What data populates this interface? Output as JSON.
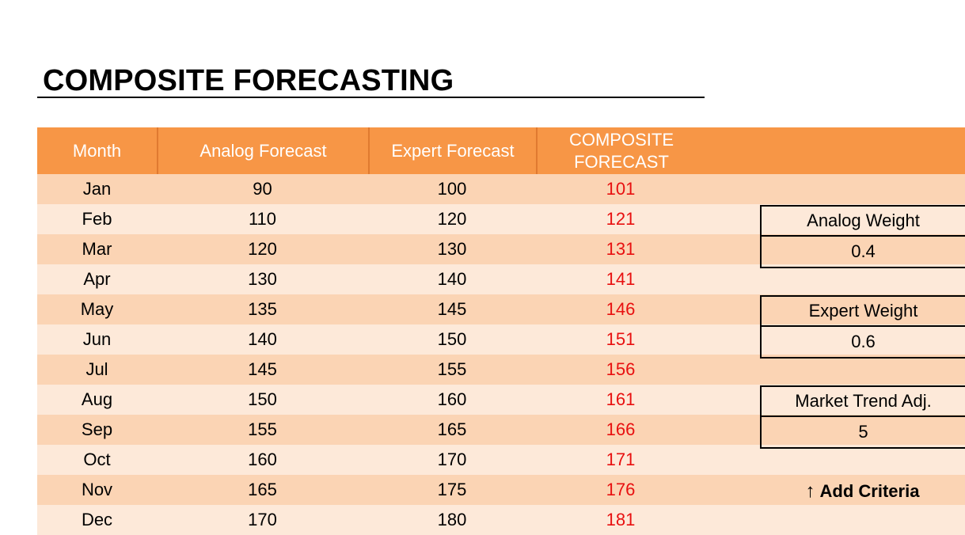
{
  "title": "COMPOSITE FORECASTING",
  "columns": {
    "month": "Month",
    "analog": "Analog Forecast",
    "expert": "Expert Forecast",
    "composite_line1": "COMPOSITE",
    "composite_line2": "FORECAST"
  },
  "rows": [
    {
      "month": "Jan",
      "analog": "90",
      "expert": "100",
      "composite": "101"
    },
    {
      "month": "Feb",
      "analog": "110",
      "expert": "120",
      "composite": "121"
    },
    {
      "month": "Mar",
      "analog": "120",
      "expert": "130",
      "composite": "131"
    },
    {
      "month": "Apr",
      "analog": "130",
      "expert": "140",
      "composite": "141"
    },
    {
      "month": "May",
      "analog": "135",
      "expert": "145",
      "composite": "146"
    },
    {
      "month": "Jun",
      "analog": "140",
      "expert": "150",
      "composite": "151"
    },
    {
      "month": "Jul",
      "analog": "145",
      "expert": "155",
      "composite": "156"
    },
    {
      "month": "Aug",
      "analog": "150",
      "expert": "160",
      "composite": "161"
    },
    {
      "month": "Sep",
      "analog": "155",
      "expert": "165",
      "composite": "166"
    },
    {
      "month": "Oct",
      "analog": "160",
      "expert": "170",
      "composite": "171"
    },
    {
      "month": "Nov",
      "analog": "165",
      "expert": "175",
      "composite": "176"
    },
    {
      "month": "Dec",
      "analog": "170",
      "expert": "180",
      "composite": "181"
    }
  ],
  "params": {
    "analog_weight": {
      "label": "Analog Weight",
      "value": "0.4"
    },
    "expert_weight": {
      "label": "Expert Weight",
      "value": "0.6"
    },
    "market_trend": {
      "label": "Market Trend Adj.",
      "value": "5"
    }
  },
  "add_criteria": {
    "icon": "up-arrow-icon",
    "arrow": "↑",
    "label": "Add Criteria"
  },
  "colors": {
    "header": "#f79646",
    "row_dark": "#fbd4b4",
    "row_light": "#fde9d9",
    "composite_text": "#e81010"
  }
}
